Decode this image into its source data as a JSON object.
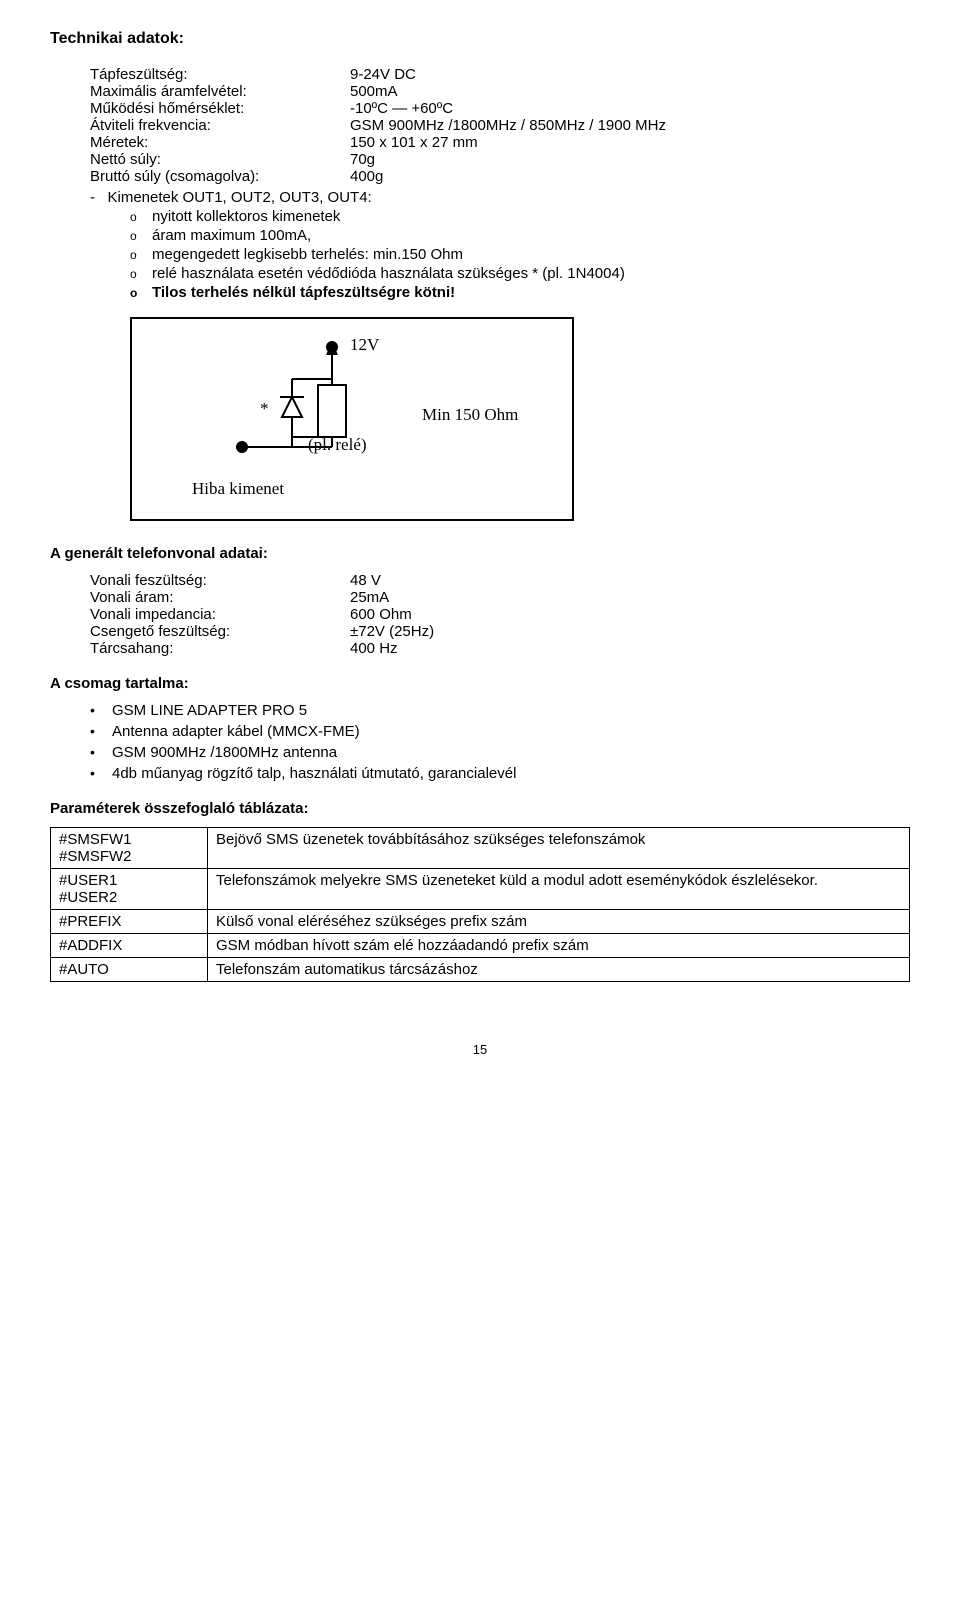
{
  "headings": {
    "tech": "Technikai adatok:",
    "phone": "A generált telefonvonal adatai:",
    "package": "A csomag tartalma:",
    "params": "Paraméterek összefoglaló táblázata:"
  },
  "specs": [
    {
      "label": "Tápfeszültség:",
      "value": "9-24V DC"
    },
    {
      "label": "Maximális áramfelvétel:",
      "value": "500mA"
    },
    {
      "label": "Működési hőmérséklet:",
      "value": "-10ºC — +60ºC"
    },
    {
      "label": "Átviteli frekvencia:",
      "value": "GSM 900MHz /1800MHz / 850MHz / 1900 MHz"
    },
    {
      "label": "Méretek:",
      "value": "150 x 101 x 27 mm"
    },
    {
      "label": "Nettó súly:",
      "value": "70g"
    },
    {
      "label": "Bruttó súly (csomagolva):",
      "value": "400g"
    }
  ],
  "outputs_line": "-   Kimenetek OUT1, OUT2, OUT3, OUT4:",
  "output_items": [
    {
      "text": "nyitott kollektoros kimenetek",
      "bold": false
    },
    {
      "text": "áram maximum 100mA,",
      "bold": false
    },
    {
      "text": "megengedett legkisebb terhelés: min.150 Ohm",
      "bold": false
    },
    {
      "text": "relé használata esetén védődióda használata szükséges * (pl. 1N4004)",
      "bold": false
    },
    {
      "text": "Tilos terhelés nélkül tápfeszültségre kötni!",
      "bold": true
    }
  ],
  "diagram": {
    "label_12v": "12V",
    "label_rele": "(pl. relé)",
    "label_min": "Min 150 Ohm",
    "label_hiba": "Hiba kimenet",
    "label_star": "*"
  },
  "phone_specs": [
    {
      "label": "Vonali feszültség:",
      "value": "48 V"
    },
    {
      "label": "Vonali áram:",
      "value": "25mA"
    },
    {
      "label": "Vonali impedancia:",
      "value": "600 Ohm"
    },
    {
      "label": "Csengető feszültség:",
      "value": "±72V (25Hz)"
    },
    {
      "label": "Tárcsahang:",
      "value": "400 Hz"
    }
  ],
  "package_items": [
    "GSM LINE ADAPTER PRO 5",
    "Antenna adapter kábel (MMCX-FME)",
    "GSM 900MHz /1800MHz antenna",
    "4db műanyag rögzítő talp, használati útmutató, garancialevél"
  ],
  "param_rows": [
    {
      "k": "#SMSFW1\n#SMSFW2",
      "v": "Bejövő SMS üzenetek továbbításához szükséges telefonszámok"
    },
    {
      "k": "#USER1\n#USER2",
      "v": "Telefonszámok melyekre SMS üzeneteket küld a modul adott eseménykódok észlelésekor."
    },
    {
      "k": "#PREFIX",
      "v": "Külső vonal eléréséhez szükséges prefix szám"
    },
    {
      "k": "#ADDFIX",
      "v": "GSM módban hívott szám elé hozzáadandó prefix szám"
    },
    {
      "k": "#AUTO",
      "v": "Telefonszám automatikus tárcsázáshoz"
    }
  ],
  "pagenum": "15"
}
